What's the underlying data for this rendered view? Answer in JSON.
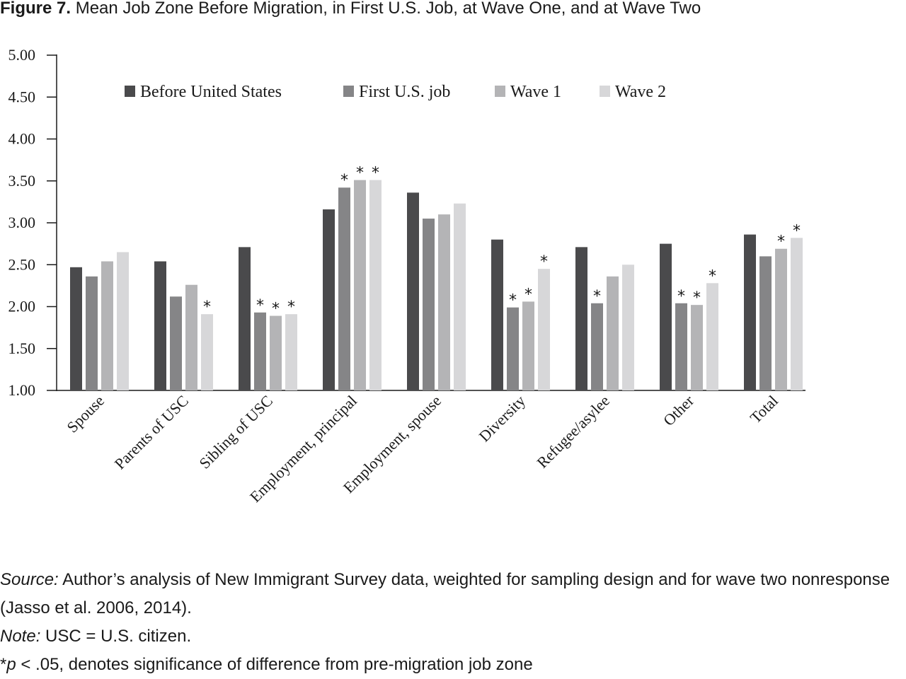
{
  "header": {
    "figure_label": "Figure 7.",
    "title": "Mean Job Zone Before Migration, in First U.S. Job, at Wave One, and at Wave Two"
  },
  "chart_data": {
    "type": "bar",
    "categories": [
      "Spouse",
      "Parents of USC",
      "Sibling of USC",
      "Employment, principal",
      "Employment, spouse",
      "Diversity",
      "Refugee/asylee",
      "Other",
      "Total"
    ],
    "series": [
      {
        "name": "Before United States",
        "color": "#4a4a4c",
        "values": [
          2.47,
          2.54,
          2.71,
          3.16,
          3.36,
          2.8,
          2.71,
          2.75,
          2.86
        ]
      },
      {
        "name": "First U.S. job",
        "color": "#858587",
        "values": [
          2.36,
          2.12,
          1.93,
          3.42,
          3.05,
          1.99,
          2.04,
          2.04,
          2.6
        ]
      },
      {
        "name": "Wave 1",
        "color": "#b4b4b6",
        "values": [
          2.54,
          2.26,
          1.89,
          3.51,
          3.1,
          2.06,
          2.36,
          2.02,
          2.69
        ]
      },
      {
        "name": "Wave 2",
        "color": "#d7d7d9",
        "values": [
          2.65,
          1.91,
          1.91,
          3.51,
          3.23,
          2.45,
          2.5,
          2.28,
          2.82
        ]
      }
    ],
    "significant": [
      [
        false,
        false,
        false,
        false,
        false,
        false,
        false,
        false,
        false
      ],
      [
        false,
        false,
        true,
        true,
        false,
        true,
        true,
        true,
        false
      ],
      [
        false,
        false,
        true,
        true,
        false,
        true,
        false,
        true,
        true
      ],
      [
        false,
        true,
        true,
        true,
        false,
        true,
        false,
        true,
        true
      ]
    ],
    "significance_marker": "*",
    "ylim": [
      1.0,
      5.0
    ],
    "yticks": [
      "1.00",
      "1.50",
      "2.00",
      "2.50",
      "3.00",
      "3.50",
      "4.00",
      "4.50",
      "5.00"
    ],
    "xlabel": "",
    "ylabel": "",
    "legend_position": "top",
    "grid": false
  },
  "notes": {
    "source_label": "Source:",
    "source_text": " Author’s analysis of New Immigrant Survey data, weighted for sampling design and for wave two nonresponse (Jasso et al. 2006, 2014).",
    "note_label": "Note:",
    "note_text": " USC = U.S. citizen.",
    "sig_star": "*",
    "sig_p": "p",
    "sig_text": " < .05, denotes significance of difference from pre-migration job zone"
  }
}
